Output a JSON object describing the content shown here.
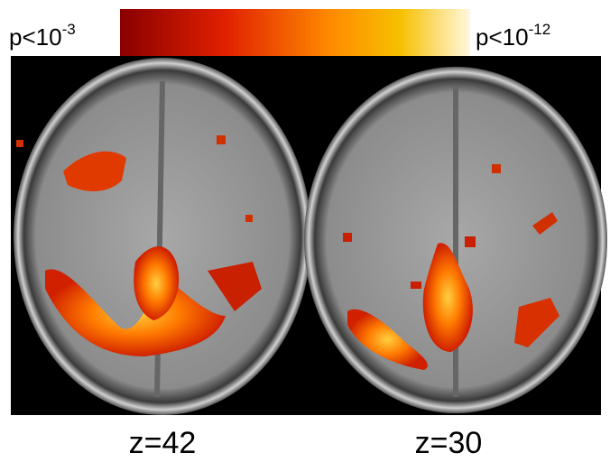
{
  "colorbar": {
    "min_label": {
      "base": "p<10",
      "exponent": "-3"
    },
    "max_label": {
      "base": "p<10",
      "exponent": "-12"
    }
  },
  "panels": [
    {
      "label": "z=42"
    },
    {
      "label": "z=30"
    }
  ]
}
